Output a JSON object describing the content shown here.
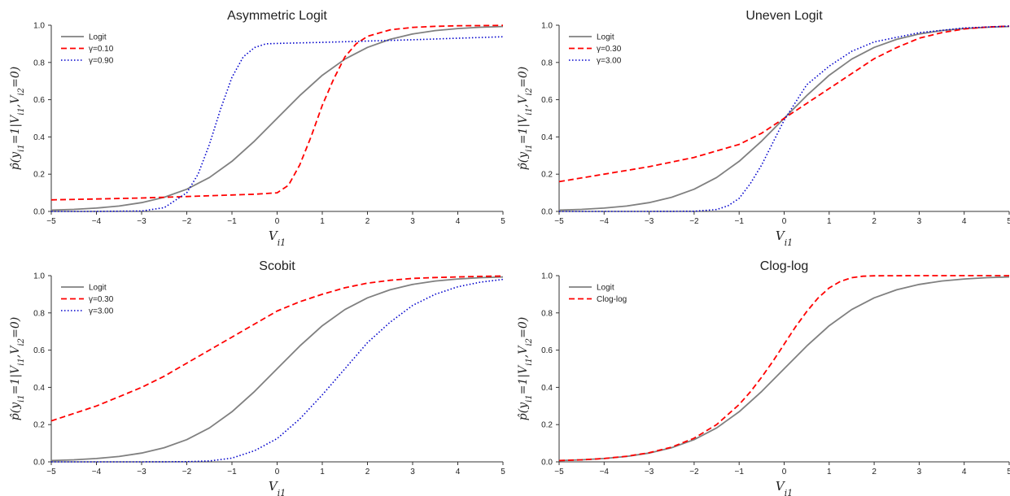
{
  "chart_data": [
    {
      "type": "line",
      "title": "Asymmetric Logit",
      "xlabel": "V_{i1}",
      "ylabel": "p̂(y_{i1}=1|V_{i1},V_{i2}=0)",
      "xlim": [
        -5,
        5
      ],
      "ylim": [
        0,
        1
      ],
      "xticks": [
        "−5",
        "−4",
        "−3",
        "−2",
        "−1",
        "0",
        "1",
        "2",
        "3",
        "4",
        "5"
      ],
      "yticks": [
        "0.0",
        "0.2",
        "0.4",
        "0.6",
        "0.8",
        "1.0"
      ],
      "legend_position": "top-left",
      "grid": false,
      "series": [
        {
          "name": "Logit",
          "color": "#808080",
          "style": "solid",
          "x": [
            -5,
            -4.5,
            -4,
            -3.5,
            -3,
            -2.5,
            -2,
            -1.5,
            -1,
            -0.5,
            0,
            0.5,
            1,
            1.5,
            2,
            2.5,
            3,
            3.5,
            4,
            4.5,
            5
          ],
          "values": [
            0.007,
            0.011,
            0.018,
            0.029,
            0.047,
            0.076,
            0.119,
            0.182,
            0.269,
            0.378,
            0.5,
            0.622,
            0.731,
            0.818,
            0.881,
            0.924,
            0.953,
            0.971,
            0.982,
            0.989,
            0.993
          ]
        },
        {
          "name": "γ=0.10",
          "color": "#ff0000",
          "style": "dashed",
          "x": [
            -5,
            -4,
            -3,
            -2,
            -1,
            -0.5,
            0,
            0.25,
            0.5,
            0.75,
            1,
            1.25,
            1.5,
            1.75,
            2,
            2.5,
            3,
            3.5,
            4,
            4.5,
            5
          ],
          "values": [
            0.062,
            0.067,
            0.072,
            0.08,
            0.088,
            0.092,
            0.1,
            0.14,
            0.25,
            0.4,
            0.57,
            0.71,
            0.83,
            0.9,
            0.94,
            0.975,
            0.988,
            0.994,
            0.997,
            0.998,
            0.999
          ]
        },
        {
          "name": "γ=0.90",
          "color": "#0000cc",
          "style": "dotted",
          "x": [
            -5,
            -4,
            -3,
            -2.5,
            -2,
            -1.75,
            -1.5,
            -1.25,
            -1,
            -0.75,
            -0.5,
            -0.25,
            0,
            1,
            2,
            3,
            4,
            5
          ],
          "values": [
            0.0,
            0.0,
            0.002,
            0.02,
            0.1,
            0.2,
            0.36,
            0.55,
            0.72,
            0.83,
            0.88,
            0.9,
            0.902,
            0.908,
            0.915,
            0.922,
            0.93,
            0.938
          ]
        }
      ]
    },
    {
      "type": "line",
      "title": "Uneven Logit",
      "xlabel": "V_{i1}",
      "ylabel": "p̂(y_{i1}=1|V_{i1},V_{i2}=0)",
      "xlim": [
        -5,
        5
      ],
      "ylim": [
        0,
        1
      ],
      "xticks": [
        "−5",
        "−4",
        "−3",
        "−2",
        "−1",
        "0",
        "1",
        "2",
        "3",
        "4",
        "5"
      ],
      "yticks": [
        "0.0",
        "0.2",
        "0.4",
        "0.6",
        "0.8",
        "1.0"
      ],
      "legend_position": "top-left",
      "grid": false,
      "series": [
        {
          "name": "Logit",
          "color": "#808080",
          "style": "solid",
          "x": [
            -5,
            -4.5,
            -4,
            -3.5,
            -3,
            -2.5,
            -2,
            -1.5,
            -1,
            -0.5,
            0,
            0.5,
            1,
            1.5,
            2,
            2.5,
            3,
            3.5,
            4,
            4.5,
            5
          ],
          "values": [
            0.007,
            0.011,
            0.018,
            0.029,
            0.047,
            0.076,
            0.119,
            0.182,
            0.269,
            0.378,
            0.5,
            0.622,
            0.731,
            0.818,
            0.881,
            0.924,
            0.953,
            0.971,
            0.982,
            0.989,
            0.993
          ]
        },
        {
          "name": "γ=0.30",
          "color": "#ff0000",
          "style": "dashed",
          "x": [
            -5,
            -4,
            -3,
            -2,
            -1,
            -0.5,
            0,
            0.5,
            1,
            1.5,
            2,
            2.5,
            3,
            3.5,
            4,
            4.5,
            5
          ],
          "values": [
            0.16,
            0.2,
            0.24,
            0.29,
            0.36,
            0.42,
            0.5,
            0.58,
            0.66,
            0.74,
            0.82,
            0.88,
            0.93,
            0.96,
            0.98,
            0.99,
            0.995
          ]
        },
        {
          "name": "γ=3.00",
          "color": "#0000cc",
          "style": "dotted",
          "x": [
            -5,
            -3,
            -2,
            -1.5,
            -1.25,
            -1,
            -0.75,
            -0.5,
            -0.25,
            0,
            0.5,
            1,
            1.5,
            2,
            3,
            4,
            5
          ],
          "values": [
            0,
            0,
            0.001,
            0.01,
            0.03,
            0.07,
            0.15,
            0.25,
            0.37,
            0.49,
            0.68,
            0.78,
            0.86,
            0.91,
            0.96,
            0.985,
            0.995
          ]
        }
      ]
    },
    {
      "type": "line",
      "title": "Scobit",
      "xlabel": "V_{i1}",
      "ylabel": "p̂(y_{i1}=1|V_{i1},V_{i2}=0)",
      "xlim": [
        -5,
        5
      ],
      "ylim": [
        0,
        1
      ],
      "xticks": [
        "−5",
        "−4",
        "−3",
        "−2",
        "−1",
        "0",
        "1",
        "2",
        "3",
        "4",
        "5"
      ],
      "yticks": [
        "0.0",
        "0.2",
        "0.4",
        "0.6",
        "0.8",
        "1.0"
      ],
      "legend_position": "top-left",
      "grid": false,
      "series": [
        {
          "name": "Logit",
          "color": "#808080",
          "style": "solid",
          "x": [
            -5,
            -4.5,
            -4,
            -3.5,
            -3,
            -2.5,
            -2,
            -1.5,
            -1,
            -0.5,
            0,
            0.5,
            1,
            1.5,
            2,
            2.5,
            3,
            3.5,
            4,
            4.5,
            5
          ],
          "values": [
            0.007,
            0.011,
            0.018,
            0.029,
            0.047,
            0.076,
            0.119,
            0.182,
            0.269,
            0.378,
            0.5,
            0.622,
            0.731,
            0.818,
            0.881,
            0.924,
            0.953,
            0.971,
            0.982,
            0.989,
            0.993
          ]
        },
        {
          "name": "γ=0.30",
          "color": "#ff0000",
          "style": "dashed",
          "x": [
            -5,
            -4.5,
            -4,
            -3.5,
            -3,
            -2.5,
            -2,
            -1.5,
            -1,
            -0.5,
            0,
            0.5,
            1,
            1.5,
            2,
            2.5,
            3,
            3.5,
            4,
            4.5,
            5
          ],
          "values": [
            0.22,
            0.26,
            0.3,
            0.35,
            0.4,
            0.46,
            0.53,
            0.6,
            0.67,
            0.74,
            0.81,
            0.86,
            0.9,
            0.935,
            0.96,
            0.975,
            0.985,
            0.99,
            0.993,
            0.996,
            0.998
          ]
        },
        {
          "name": "γ=3.00",
          "color": "#0000cc",
          "style": "dotted",
          "x": [
            -5,
            -3,
            -2,
            -1.5,
            -1,
            -0.5,
            0,
            0.5,
            1,
            1.5,
            2,
            2.5,
            3,
            3.5,
            4,
            4.5,
            5
          ],
          "values": [
            0,
            0,
            0.001,
            0.005,
            0.02,
            0.06,
            0.125,
            0.23,
            0.36,
            0.5,
            0.64,
            0.75,
            0.84,
            0.9,
            0.94,
            0.965,
            0.98
          ]
        }
      ]
    },
    {
      "type": "line",
      "title": "Clog-log",
      "xlabel": "V_{i1}",
      "ylabel": "p̂(y_{i1}=1|V_{i1},V_{i2}=0)",
      "xlim": [
        -5,
        5
      ],
      "ylim": [
        0,
        1
      ],
      "xticks": [
        "−5",
        "−4",
        "−3",
        "−2",
        "−1",
        "0",
        "1",
        "2",
        "3",
        "4",
        "5"
      ],
      "yticks": [
        "0.0",
        "0.2",
        "0.4",
        "0.6",
        "0.8",
        "1.0"
      ],
      "legend_position": "top-left",
      "grid": false,
      "series": [
        {
          "name": "Logit",
          "color": "#808080",
          "style": "solid",
          "x": [
            -5,
            -4.5,
            -4,
            -3.5,
            -3,
            -2.5,
            -2,
            -1.5,
            -1,
            -0.5,
            0,
            0.5,
            1,
            1.5,
            2,
            2.5,
            3,
            3.5,
            4,
            4.5,
            5
          ],
          "values": [
            0.007,
            0.011,
            0.018,
            0.029,
            0.047,
            0.076,
            0.119,
            0.182,
            0.269,
            0.378,
            0.5,
            0.622,
            0.731,
            0.818,
            0.881,
            0.924,
            0.953,
            0.971,
            0.982,
            0.989,
            0.993
          ]
        },
        {
          "name": "Clog-log",
          "color": "#ff0000",
          "style": "dashed",
          "x": [
            -5,
            -4.5,
            -4,
            -3.5,
            -3,
            -2.5,
            -2,
            -1.5,
            -1,
            -0.75,
            -0.5,
            -0.25,
            0,
            0.25,
            0.5,
            0.75,
            1,
            1.25,
            1.5,
            1.75,
            2,
            3,
            4,
            5
          ],
          "values": [
            0.007,
            0.011,
            0.018,
            0.03,
            0.049,
            0.079,
            0.127,
            0.2,
            0.308,
            0.376,
            0.455,
            0.54,
            0.632,
            0.724,
            0.807,
            0.879,
            0.934,
            0.969,
            0.989,
            0.997,
            0.999,
            1.0,
            1.0,
            1.0
          ]
        }
      ]
    }
  ]
}
